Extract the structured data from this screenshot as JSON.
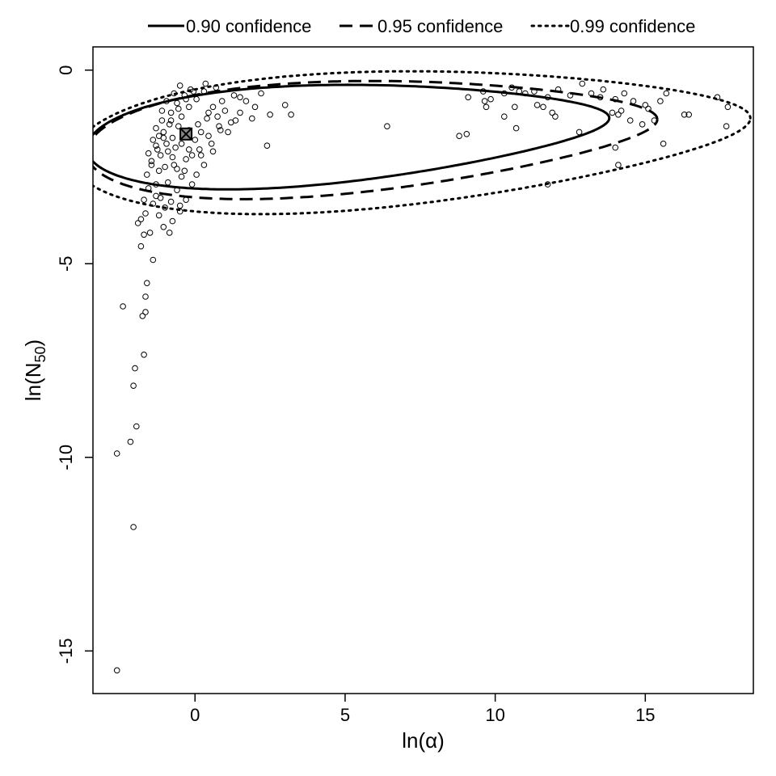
{
  "chart_data": {
    "type": "scatter",
    "title": "",
    "xlabel": "ln(α)",
    "ylabel_main": "ln(N",
    "ylabel_sub": "50",
    "ylabel_end": ")",
    "xlim": [
      -3.4,
      18.6
    ],
    "ylim": [
      -16.1,
      0.6
    ],
    "xticks": [
      0,
      5,
      10,
      15
    ],
    "yticks": [
      0,
      -5,
      -10,
      -15
    ],
    "xtick_labels": [
      "0",
      "5",
      "10",
      "15"
    ],
    "ytick_labels": [
      "0",
      "-5",
      "-10",
      "-15"
    ],
    "grid": false,
    "legend_position": "top",
    "legend": [
      {
        "label": "0.90 confidence",
        "style": "solid"
      },
      {
        "label": "0.95 confidence",
        "style": "dashed"
      },
      {
        "label": "0.99 confidence",
        "style": "dotted"
      }
    ],
    "point_estimate": {
      "x": -0.3,
      "y": -1.65
    },
    "contours": [
      {
        "name": "0.90 confidence",
        "style": "solid",
        "cx": 5.1,
        "cy": -1.63,
        "rx": 8.7,
        "ry": 1.25,
        "tilt": 0.09
      },
      {
        "name": "0.95 confidence",
        "style": "dashed",
        "cx": 5.9,
        "cy": -1.7,
        "rx": 9.5,
        "ry": 1.42,
        "tilt": 0.09
      },
      {
        "name": "0.99 confidence",
        "style": "dotted",
        "cx": 7.2,
        "cy": -1.75,
        "rx": 11.3,
        "ry": 1.72,
        "tilt": 0.09
      }
    ],
    "scatter_points": [
      [
        -2.6,
        -15.5
      ],
      [
        -2.05,
        -11.8
      ],
      [
        -2.6,
        -9.9
      ],
      [
        -2.15,
        -9.6
      ],
      [
        -1.95,
        -9.2
      ],
      [
        -2.05,
        -8.15
      ],
      [
        -2.0,
        -7.7
      ],
      [
        -1.7,
        -7.35
      ],
      [
        -2.4,
        -6.1
      ],
      [
        -1.75,
        -6.35
      ],
      [
        -1.65,
        -6.25
      ],
      [
        -1.65,
        -5.85
      ],
      [
        -1.6,
        -5.5
      ],
      [
        -1.4,
        -4.9
      ],
      [
        -1.8,
        -4.55
      ],
      [
        -1.7,
        -4.25
      ],
      [
        -1.9,
        -3.95
      ],
      [
        -1.8,
        -3.85
      ],
      [
        -1.5,
        -4.2
      ],
      [
        -1.65,
        -3.7
      ],
      [
        -1.2,
        -3.75
      ],
      [
        -1.05,
        -4.05
      ],
      [
        -0.85,
        -4.2
      ],
      [
        -0.75,
        -3.9
      ],
      [
        -0.5,
        -3.65
      ],
      [
        -1.4,
        -3.45
      ],
      [
        -1.15,
        -3.3
      ],
      [
        -0.3,
        -3.35
      ],
      [
        -0.6,
        -3.1
      ],
      [
        -1.3,
        -2.95
      ],
      [
        -0.9,
        -2.9
      ],
      [
        -1.6,
        -2.7
      ],
      [
        -0.45,
        -2.75
      ],
      [
        -0.1,
        -2.95
      ],
      [
        0.05,
        -2.7
      ],
      [
        -1.45,
        -2.45
      ],
      [
        -1.0,
        -2.5
      ],
      [
        -0.7,
        -2.45
      ],
      [
        -1.55,
        -2.15
      ],
      [
        -1.15,
        -2.2
      ],
      [
        -0.3,
        -2.3
      ],
      [
        0.3,
        -2.45
      ],
      [
        -1.3,
        -1.95
      ],
      [
        -0.95,
        -1.9
      ],
      [
        -0.2,
        -2.05
      ],
      [
        0.2,
        -2.2
      ],
      [
        -1.3,
        -1.5
      ],
      [
        -1.05,
        -1.6
      ],
      [
        -0.75,
        -1.75
      ],
      [
        0.0,
        -1.8
      ],
      [
        0.55,
        -1.9
      ],
      [
        -1.1,
        -1.3
      ],
      [
        -0.85,
        -1.4
      ],
      [
        -0.55,
        -1.45
      ],
      [
        0.1,
        -1.4
      ],
      [
        0.85,
        -1.55
      ],
      [
        -1.1,
        -1.05
      ],
      [
        -0.8,
        -1.1
      ],
      [
        -0.45,
        -1.2
      ],
      [
        0.4,
        -1.25
      ],
      [
        1.2,
        -1.35
      ],
      [
        -0.95,
        -0.8
      ],
      [
        -0.6,
        -0.85
      ],
      [
        -0.2,
        -0.95
      ],
      [
        0.6,
        -0.95
      ],
      [
        1.5,
        -1.1
      ],
      [
        -0.7,
        -0.6
      ],
      [
        -0.35,
        -0.65
      ],
      [
        0.05,
        -0.75
      ],
      [
        0.9,
        -0.8
      ],
      [
        -0.5,
        -0.4
      ],
      [
        -0.15,
        -0.5
      ],
      [
        0.3,
        -0.55
      ],
      [
        1.3,
        -0.65
      ],
      [
        -1.2,
        -2.6
      ],
      [
        -1.4,
        -1.8
      ],
      [
        -1.2,
        -1.7
      ],
      [
        -0.9,
        -2.1
      ],
      [
        -0.65,
        -2.0
      ],
      [
        -0.45,
        -1.9
      ],
      [
        -0.2,
        -1.55
      ],
      [
        0.2,
        -1.6
      ],
      [
        0.45,
        -1.1
      ],
      [
        0.75,
        -1.2
      ],
      [
        1.0,
        -1.05
      ],
      [
        1.7,
        -0.8
      ],
      [
        2.0,
        -0.95
      ],
      [
        2.2,
        -0.6
      ],
      [
        2.5,
        -1.15
      ],
      [
        3.0,
        -0.9
      ],
      [
        3.2,
        -1.15
      ],
      [
        2.4,
        -1.95
      ],
      [
        1.9,
        -1.25
      ],
      [
        1.5,
        -0.7
      ],
      [
        0.7,
        -0.45
      ],
      [
        0.35,
        -0.35
      ],
      [
        -0.05,
        -0.55
      ],
      [
        -0.3,
        -0.75
      ],
      [
        -0.55,
        -1.0
      ],
      [
        -0.8,
        -1.3
      ],
      [
        -1.05,
        -1.75
      ],
      [
        -1.25,
        -2.05
      ],
      [
        -1.45,
        -2.35
      ],
      [
        -0.6,
        -2.55
      ],
      [
        -0.35,
        -2.6
      ],
      [
        0.15,
        -2.05
      ],
      [
        0.45,
        -1.7
      ],
      [
        0.8,
        -1.45
      ],
      [
        1.1,
        -1.6
      ],
      [
        1.35,
        -1.3
      ],
      [
        0.6,
        -2.1
      ],
      [
        -0.1,
        -2.2
      ],
      [
        -0.75,
        -2.25
      ],
      [
        -1.55,
        -3.05
      ],
      [
        -1.3,
        -3.25
      ],
      [
        -1.0,
        -3.55
      ],
      [
        -0.8,
        -3.4
      ],
      [
        -0.5,
        -3.5
      ],
      [
        -1.7,
        -3.35
      ],
      [
        6.4,
        -1.45
      ],
      [
        8.8,
        -1.7
      ],
      [
        9.05,
        -1.65
      ],
      [
        9.1,
        -0.7
      ],
      [
        9.6,
        -0.55
      ],
      [
        9.65,
        -0.8
      ],
      [
        9.7,
        -0.95
      ],
      [
        9.85,
        -0.75
      ],
      [
        10.3,
        -0.6
      ],
      [
        10.3,
        -1.2
      ],
      [
        10.55,
        -0.45
      ],
      [
        10.65,
        -0.95
      ],
      [
        10.7,
        -1.5
      ],
      [
        10.8,
        -0.55
      ],
      [
        11.0,
        -0.6
      ],
      [
        11.3,
        -0.55
      ],
      [
        11.4,
        -0.9
      ],
      [
        11.6,
        -0.95
      ],
      [
        11.75,
        -0.7
      ],
      [
        11.75,
        -2.95
      ],
      [
        11.9,
        -1.1
      ],
      [
        12.0,
        -1.2
      ],
      [
        12.1,
        -0.5
      ],
      [
        12.5,
        -0.65
      ],
      [
        12.8,
        -1.6
      ],
      [
        12.9,
        -0.35
      ],
      [
        13.2,
        -0.6
      ],
      [
        13.5,
        -0.7
      ],
      [
        13.6,
        -0.5
      ],
      [
        13.9,
        -1.1
      ],
      [
        14.0,
        -0.75
      ],
      [
        14.0,
        -2.0
      ],
      [
        14.1,
        -1.15
      ],
      [
        14.2,
        -1.05
      ],
      [
        14.3,
        -0.6
      ],
      [
        14.5,
        -1.3
      ],
      [
        14.6,
        -0.8
      ],
      [
        14.9,
        -1.4
      ],
      [
        15.0,
        -0.9
      ],
      [
        15.1,
        -1.0
      ],
      [
        15.3,
        -1.3
      ],
      [
        15.5,
        -0.8
      ],
      [
        15.6,
        -1.9
      ],
      [
        15.7,
        -0.6
      ],
      [
        16.3,
        -1.15
      ],
      [
        16.45,
        -1.15
      ],
      [
        17.4,
        -0.7
      ],
      [
        17.75,
        -0.95
      ],
      [
        17.7,
        -1.45
      ],
      [
        14.1,
        -2.45
      ]
    ]
  }
}
